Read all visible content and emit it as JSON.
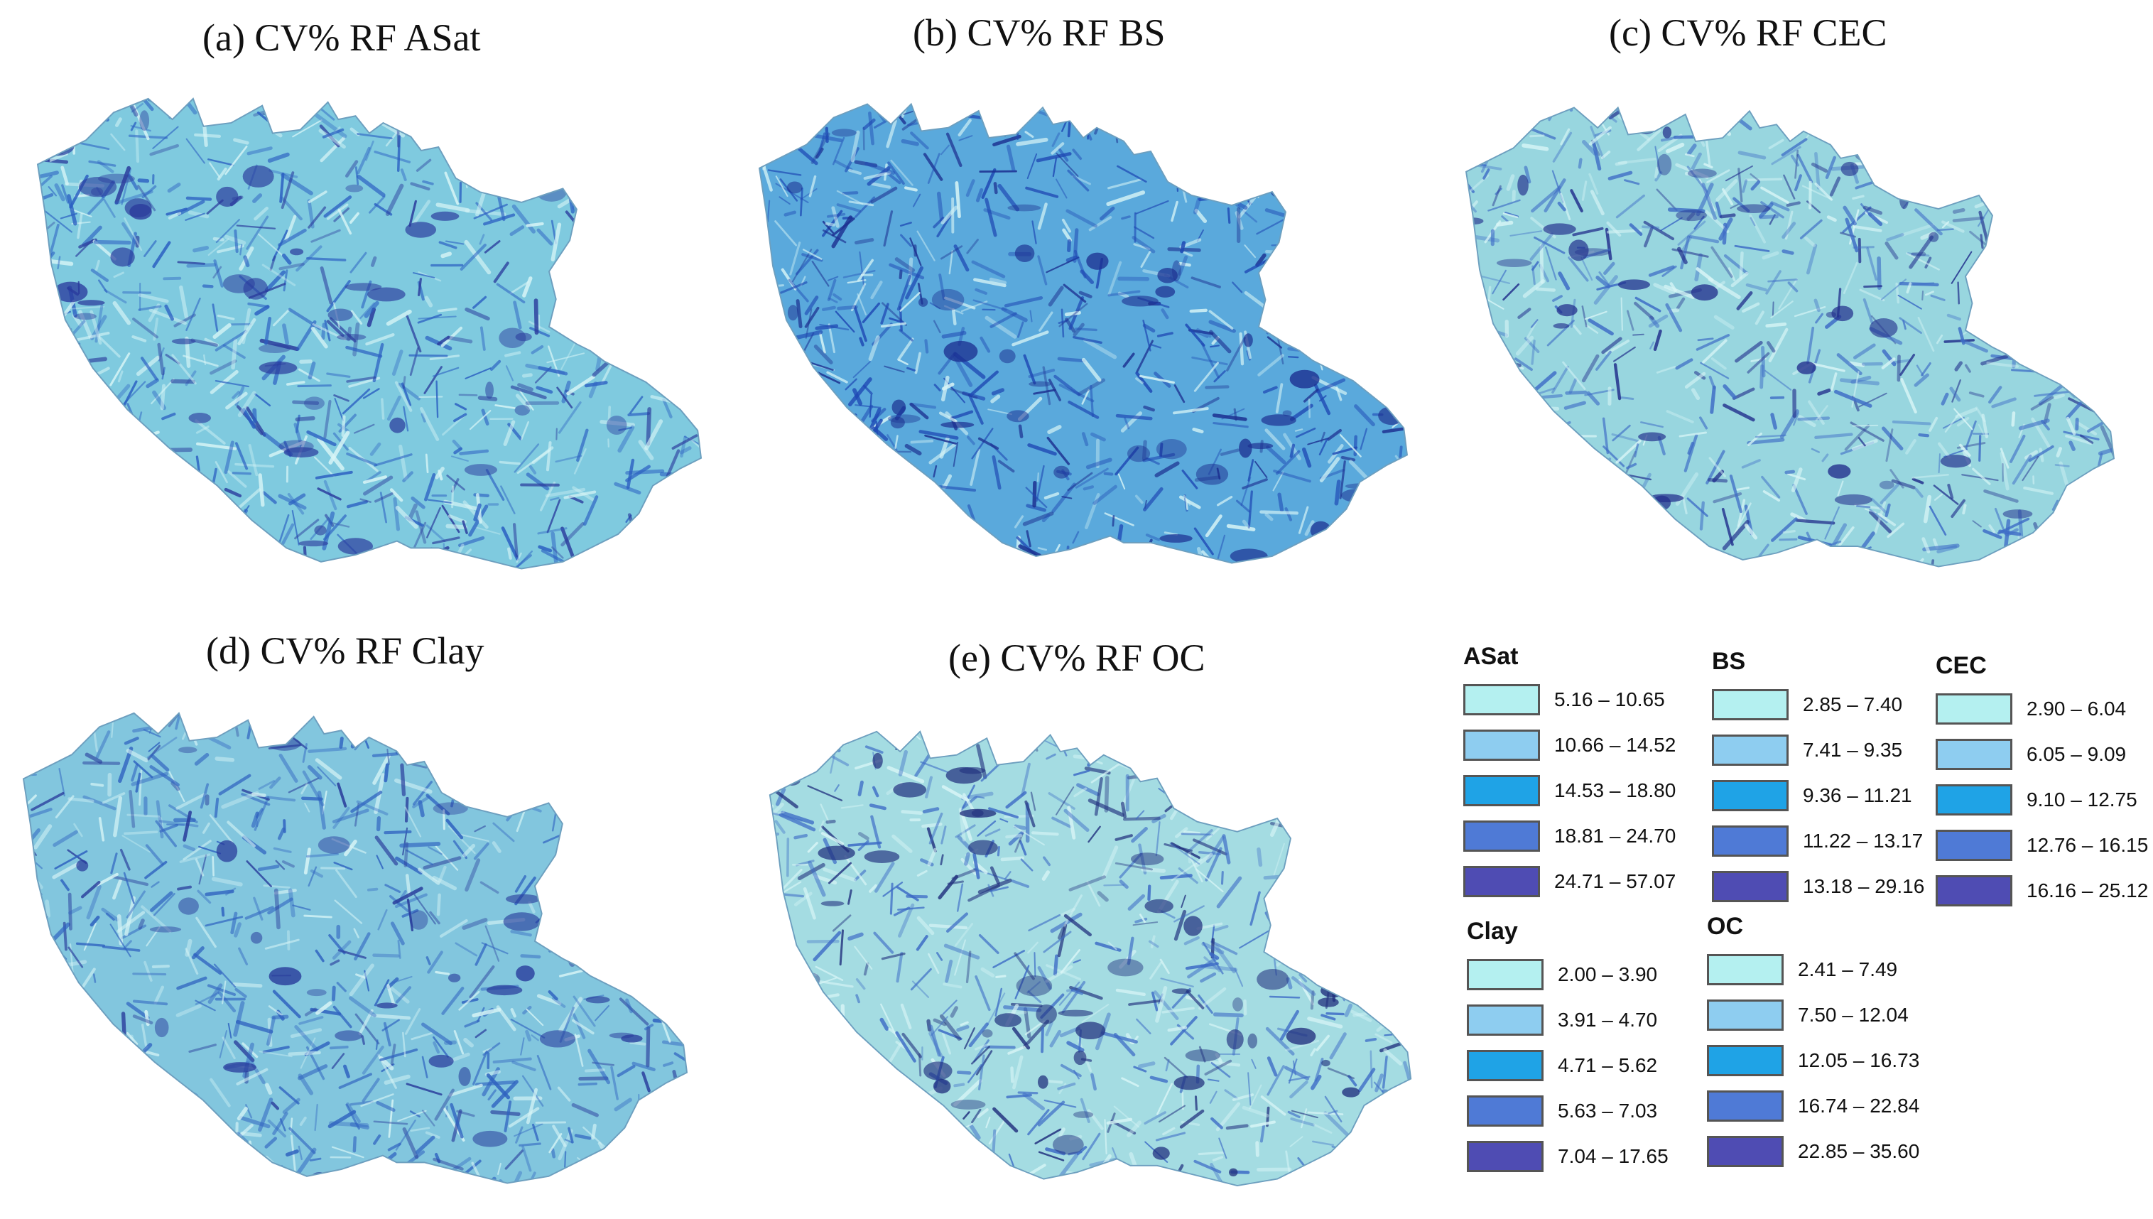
{
  "panels": [
    {
      "title": "(a) CV% RF ASat",
      "base": "#7fcadf",
      "dark": "#2b5fc2",
      "deep": "#2a3a9c",
      "seed": 11
    },
    {
      "title": "(b) CV% RF BS",
      "base": "#5aa9dc",
      "dark": "#1f49b4",
      "deep": "#1c2f90",
      "seed": 23
    },
    {
      "title": "(c) CV% RF CEC",
      "base": "#98d6df",
      "dark": "#3e6cc6",
      "deep": "#23308d",
      "seed": 37
    },
    {
      "title": "(d) CV% RF Clay",
      "base": "#82c6de",
      "dark": "#2f62c0",
      "deep": "#27399a",
      "seed": 53
    },
    {
      "title": "(e) CV% RF OC",
      "base": "#a4dce2",
      "dark": "#3c6ac6",
      "deep": "#21307e",
      "seed": 71
    }
  ],
  "legend_colors": [
    "#b4f0f0",
    "#8ecdf0",
    "#1fa3e6",
    "#4f7ad6",
    "#4f4cb3"
  ],
  "legends": [
    {
      "title": "ASat",
      "ranges": [
        "5.16 – 10.65",
        "10.66 – 14.52",
        "14.53 – 18.80",
        "18.81 – 24.70",
        "24.71 – 57.07"
      ]
    },
    {
      "title": "BS",
      "ranges": [
        "2.85 – 7.40",
        "7.41 – 9.35",
        "9.36 – 11.21",
        "11.22 – 13.17",
        "13.18 – 29.16"
      ]
    },
    {
      "title": "CEC",
      "ranges": [
        "2.90 – 6.04",
        "6.05 – 9.09",
        "9.10 – 12.75",
        "12.76 – 16.15",
        "16.16 – 25.12"
      ]
    },
    {
      "title": "Clay",
      "ranges": [
        "2.00 – 3.90",
        "3.91 – 4.70",
        "4.71 – 5.62",
        "5.63 – 7.03",
        "7.04 – 17.65"
      ]
    },
    {
      "title": "OC",
      "ranges": [
        "2.41 – 7.49",
        "7.50 – 12.04",
        "12.05 – 16.73",
        "16.74 – 22.84",
        "22.85 – 35.60"
      ]
    }
  ]
}
